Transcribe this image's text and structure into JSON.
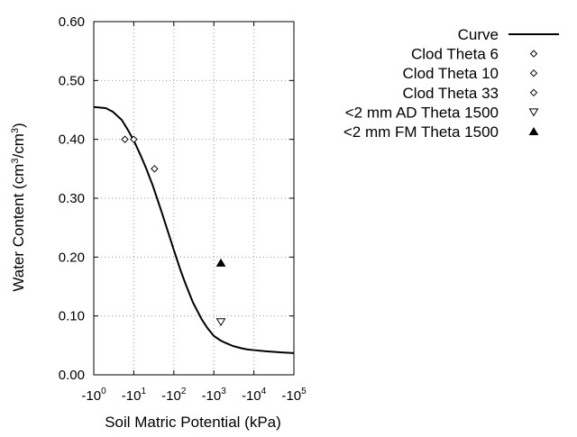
{
  "chart_data": {
    "type": "scatter",
    "xlabel": "Soil Matric Potential (kPa)",
    "ylabel": "Water Content (cm³/cm³)",
    "ylabel_parts": {
      "base": "Water Content (cm",
      "sup1": "3",
      "mid": "/cm",
      "sup2": "3",
      "end": ")"
    },
    "x_scale": "log",
    "xlim": [
      1,
      100000
    ],
    "ylim": [
      0,
      0.6
    ],
    "y_ticks": [
      "0.00",
      "0.10",
      "0.20",
      "0.30",
      "0.40",
      "0.50",
      "0.60"
    ],
    "x_ticks": [
      {
        "value": 1,
        "base": "-10",
        "exp": "0"
      },
      {
        "value": 10,
        "base": "-10",
        "exp": "1"
      },
      {
        "value": 100,
        "base": "-10",
        "exp": "2"
      },
      {
        "value": 1000,
        "base": "-10",
        "exp": "3"
      },
      {
        "value": 10000,
        "base": "-10",
        "exp": "4"
      },
      {
        "value": 100000,
        "base": "-10",
        "exp": "5"
      }
    ],
    "grid": true,
    "legend_position": "top-right",
    "series": [
      {
        "name": "Curve",
        "kind": "line",
        "color": "#000000",
        "points": [
          [
            1,
            0.455
          ],
          [
            2,
            0.453
          ],
          [
            3,
            0.447
          ],
          [
            5,
            0.433
          ],
          [
            7,
            0.417
          ],
          [
            10,
            0.398
          ],
          [
            15,
            0.372
          ],
          [
            20,
            0.352
          ],
          [
            30,
            0.321
          ],
          [
            50,
            0.276
          ],
          [
            70,
            0.245
          ],
          [
            100,
            0.212
          ],
          [
            150,
            0.176
          ],
          [
            200,
            0.153
          ],
          [
            300,
            0.123
          ],
          [
            500,
            0.094
          ],
          [
            700,
            0.079
          ],
          [
            1000,
            0.066
          ],
          [
            1500,
            0.058
          ],
          [
            2000,
            0.054
          ],
          [
            3000,
            0.049
          ],
          [
            5000,
            0.045
          ],
          [
            7000,
            0.043
          ],
          [
            10000,
            0.042
          ],
          [
            20000,
            0.04
          ],
          [
            50000,
            0.038
          ],
          [
            100000,
            0.037
          ]
        ]
      },
      {
        "name": "Clod Theta 6",
        "kind": "marker",
        "marker": "diamond",
        "points": [
          [
            6,
            0.4
          ]
        ]
      },
      {
        "name": "Clod Theta 10",
        "kind": "marker",
        "marker": "diamond",
        "points": [
          [
            10,
            0.4
          ]
        ]
      },
      {
        "name": "Clod Theta 33",
        "kind": "marker",
        "marker": "diamond",
        "points": [
          [
            33,
            0.35
          ]
        ]
      },
      {
        "name": "<2 mm AD Theta 1500",
        "kind": "marker",
        "marker": "triangle-down-open",
        "points": [
          [
            1500,
            0.09
          ]
        ]
      },
      {
        "name": "<2 mm FM Theta 1500",
        "kind": "marker",
        "marker": "triangle-up-filled",
        "points": [
          [
            1500,
            0.19
          ]
        ]
      }
    ]
  }
}
